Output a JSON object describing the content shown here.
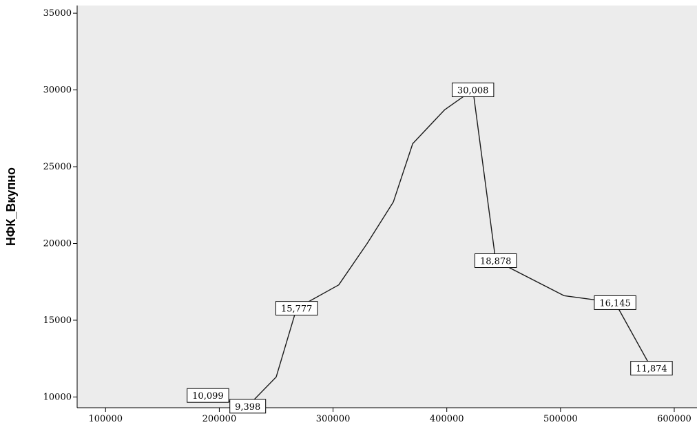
{
  "colors": {
    "plot_background": "#ececec",
    "line": "#1a1a1a",
    "axis": "#000000",
    "label_box": "#ffffff"
  },
  "chart_data": {
    "type": "line",
    "title": "",
    "xlabel": "",
    "ylabel": "НФК_Вкупно",
    "xlim": [
      75000,
      620000
    ],
    "ylim": [
      9300,
      35500
    ],
    "grid": false,
    "x_ticks": [
      "100000",
      "200000",
      "300000",
      "400000",
      "500000",
      "600000"
    ],
    "x_tick_values": [
      100000,
      200000,
      300000,
      400000,
      500000,
      600000
    ],
    "y_ticks": [
      "10000",
      "15000",
      "20000",
      "25000",
      "30000",
      "35000"
    ],
    "y_tick_values": [
      10000,
      15000,
      20000,
      25000,
      30000,
      35000
    ],
    "series": [
      {
        "points": [
          {
            "x": 190000,
            "y": 10099,
            "label": "10,099"
          },
          {
            "x": 225000,
            "y": 9398,
            "label": "9,398"
          },
          {
            "x": 250000,
            "y": 11300
          },
          {
            "x": 268000,
            "y": 15777,
            "label": "15,777"
          },
          {
            "x": 305000,
            "y": 17300
          },
          {
            "x": 330000,
            "y": 20000
          },
          {
            "x": 353000,
            "y": 22700
          },
          {
            "x": 370000,
            "y": 26500
          },
          {
            "x": 398000,
            "y": 28700
          },
          {
            "x": 423000,
            "y": 30008,
            "label": "30,008"
          },
          {
            "x": 443000,
            "y": 18878,
            "label": "18,878"
          },
          {
            "x": 503000,
            "y": 16600
          },
          {
            "x": 548000,
            "y": 16145,
            "label": "16,145"
          },
          {
            "x": 580000,
            "y": 11874,
            "label": "11,874"
          }
        ]
      }
    ]
  }
}
